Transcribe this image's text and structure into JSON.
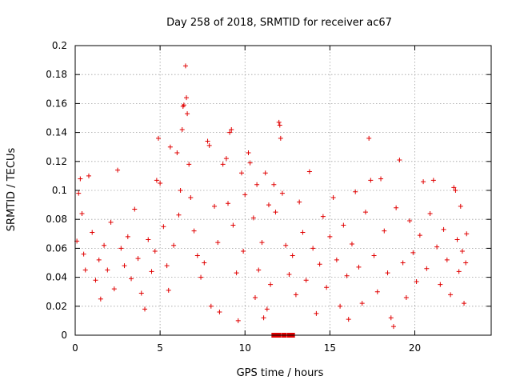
{
  "chart_data": {
    "type": "scatter",
    "title": "Day 258 of 2018, SRMTID for receiver ac67",
    "xlabel": "GPS time / hours",
    "ylabel": "SRMTID / TECUs",
    "xlim": [
      0,
      24.5
    ],
    "ylim": [
      0,
      0.2
    ],
    "x_ticks": [
      0,
      5,
      10,
      15,
      20
    ],
    "x_tick_labels": [
      "0",
      "5",
      "10",
      "15",
      "20"
    ],
    "y_ticks": [
      0,
      0.02,
      0.04,
      0.06,
      0.08,
      0.1,
      0.12,
      0.14,
      0.16,
      0.18,
      0.2
    ],
    "y_tick_labels": [
      "0",
      "0.02",
      "0.04",
      "0.06",
      "0.08",
      "0.1",
      "0.12",
      "0.14",
      "0.16",
      "0.18",
      "0.2"
    ],
    "grid": true,
    "marker": "+",
    "color": "#e00000",
    "series": [
      {
        "name": "SRMTID ac67",
        "points": [
          [
            0.1,
            0.065
          ],
          [
            0.2,
            0.098
          ],
          [
            0.3,
            0.108
          ],
          [
            0.4,
            0.084
          ],
          [
            0.5,
            0.056
          ],
          [
            0.6,
            0.045
          ],
          [
            0.8,
            0.11
          ],
          [
            1.0,
            0.071
          ],
          [
            1.2,
            0.038
          ],
          [
            1.4,
            0.052
          ],
          [
            1.5,
            0.025
          ],
          [
            1.7,
            0.062
          ],
          [
            1.9,
            0.045
          ],
          [
            2.1,
            0.078
          ],
          [
            2.3,
            0.032
          ],
          [
            2.5,
            0.114
          ],
          [
            2.7,
            0.06
          ],
          [
            2.9,
            0.048
          ],
          [
            3.1,
            0.068
          ],
          [
            3.3,
            0.039
          ],
          [
            3.5,
            0.087
          ],
          [
            3.7,
            0.053
          ],
          [
            3.9,
            0.029
          ],
          [
            4.1,
            0.018
          ],
          [
            4.3,
            0.066
          ],
          [
            4.5,
            0.044
          ],
          [
            4.7,
            0.058
          ],
          [
            4.8,
            0.107
          ],
          [
            4.9,
            0.136
          ],
          [
            5.0,
            0.105
          ],
          [
            5.2,
            0.075
          ],
          [
            5.4,
            0.048
          ],
          [
            5.5,
            0.031
          ],
          [
            5.6,
            0.13
          ],
          [
            5.8,
            0.062
          ],
          [
            6.0,
            0.126
          ],
          [
            6.1,
            0.083
          ],
          [
            6.2,
            0.1
          ],
          [
            6.3,
            0.142
          ],
          [
            6.35,
            0.158
          ],
          [
            6.4,
            0.159
          ],
          [
            6.5,
            0.186
          ],
          [
            6.55,
            0.164
          ],
          [
            6.6,
            0.153
          ],
          [
            6.7,
            0.118
          ],
          [
            6.8,
            0.095
          ],
          [
            7.0,
            0.072
          ],
          [
            7.2,
            0.055
          ],
          [
            7.4,
            0.04
          ],
          [
            7.6,
            0.05
          ],
          [
            7.8,
            0.134
          ],
          [
            7.9,
            0.131
          ],
          [
            8.0,
            0.02
          ],
          [
            8.2,
            0.089
          ],
          [
            8.4,
            0.064
          ],
          [
            8.5,
            0.016
          ],
          [
            8.7,
            0.118
          ],
          [
            8.9,
            0.122
          ],
          [
            9.0,
            0.091
          ],
          [
            9.1,
            0.14
          ],
          [
            9.2,
            0.142
          ],
          [
            9.3,
            0.076
          ],
          [
            9.5,
            0.043
          ],
          [
            9.6,
            0.01
          ],
          [
            9.8,
            0.112
          ],
          [
            9.9,
            0.058
          ],
          [
            10.0,
            0.097
          ],
          [
            10.2,
            0.126
          ],
          [
            10.3,
            0.119
          ],
          [
            10.5,
            0.081
          ],
          [
            10.6,
            0.026
          ],
          [
            10.7,
            0.104
          ],
          [
            10.8,
            0.045
          ],
          [
            11.0,
            0.064
          ],
          [
            11.1,
            0.012
          ],
          [
            11.2,
            0.112
          ],
          [
            11.3,
            0.018
          ],
          [
            11.4,
            0.09
          ],
          [
            11.5,
            0.035
          ],
          [
            11.7,
            0.104
          ],
          [
            11.8,
            0.085
          ],
          [
            12.0,
            0.147
          ],
          [
            12.05,
            0.145
          ],
          [
            12.1,
            0.136
          ],
          [
            12.2,
            0.098
          ],
          [
            12.4,
            0.062
          ],
          [
            12.6,
            0.042
          ],
          [
            12.8,
            0.055
          ],
          [
            13.0,
            0.028
          ],
          [
            13.2,
            0.092
          ],
          [
            13.4,
            0.071
          ],
          [
            13.6,
            0.038
          ],
          [
            13.8,
            0.113
          ],
          [
            14.0,
            0.06
          ],
          [
            14.2,
            0.015
          ],
          [
            14.4,
            0.049
          ],
          [
            14.6,
            0.082
          ],
          [
            14.8,
            0.033
          ],
          [
            15.0,
            0.068
          ],
          [
            15.2,
            0.095
          ],
          [
            15.4,
            0.052
          ],
          [
            15.6,
            0.02
          ],
          [
            15.8,
            0.076
          ],
          [
            16.0,
            0.041
          ],
          [
            16.1,
            0.011
          ],
          [
            16.3,
            0.063
          ],
          [
            16.5,
            0.099
          ],
          [
            16.7,
            0.047
          ],
          [
            16.9,
            0.022
          ],
          [
            17.1,
            0.085
          ],
          [
            17.3,
            0.136
          ],
          [
            17.4,
            0.107
          ],
          [
            17.6,
            0.055
          ],
          [
            17.8,
            0.03
          ],
          [
            18.0,
            0.108
          ],
          [
            18.2,
            0.072
          ],
          [
            18.4,
            0.043
          ],
          [
            18.6,
            0.012
          ],
          [
            18.75,
            0.006
          ],
          [
            18.9,
            0.088
          ],
          [
            19.1,
            0.121
          ],
          [
            19.3,
            0.05
          ],
          [
            19.5,
            0.026
          ],
          [
            19.7,
            0.079
          ],
          [
            19.9,
            0.057
          ],
          [
            20.1,
            0.037
          ],
          [
            20.3,
            0.069
          ],
          [
            20.5,
            0.106
          ],
          [
            20.7,
            0.046
          ],
          [
            20.9,
            0.084
          ],
          [
            21.1,
            0.107
          ],
          [
            21.3,
            0.061
          ],
          [
            21.5,
            0.035
          ],
          [
            21.7,
            0.073
          ],
          [
            21.9,
            0.052
          ],
          [
            22.1,
            0.028
          ],
          [
            22.3,
            0.102
          ],
          [
            22.4,
            0.1
          ],
          [
            22.5,
            0.066
          ],
          [
            22.6,
            0.044
          ],
          [
            22.7,
            0.089
          ],
          [
            22.8,
            0.058
          ],
          [
            22.9,
            0.022
          ],
          [
            23.0,
            0.05
          ],
          [
            23.05,
            0.07
          ]
        ]
      },
      {
        "name": "data gap markers",
        "points": [
          [
            11.7,
            0
          ],
          [
            11.9,
            0
          ],
          [
            12.0,
            0
          ],
          [
            12.3,
            0
          ],
          [
            12.6,
            0
          ],
          [
            12.8,
            0
          ]
        ]
      }
    ]
  }
}
